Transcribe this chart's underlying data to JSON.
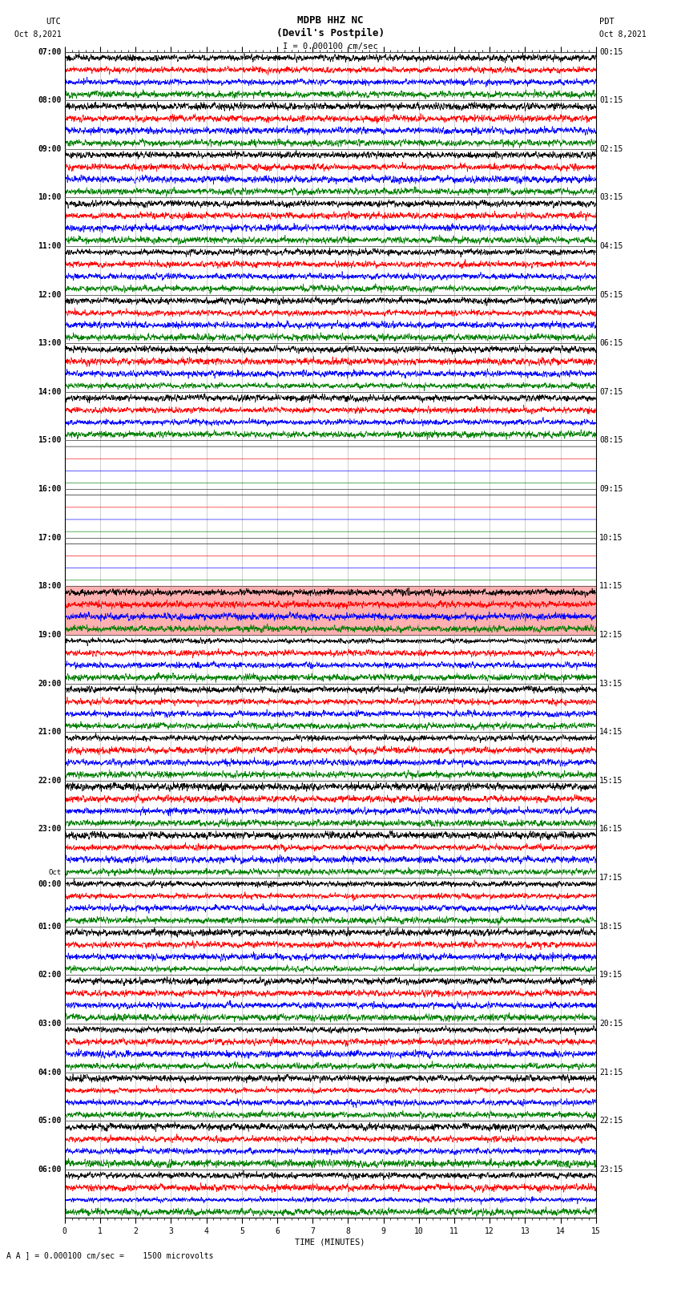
{
  "title_line1": "MDPB HHZ NC",
  "title_line2": "(Devil's Postpile)",
  "scale_label": "I = 0.000100 cm/sec",
  "bottom_text": "A ] = 0.000100 cm/sec =    1500 microvolts",
  "xlabel": "TIME (MINUTES)",
  "left_label": "UTC",
  "left_date": "Oct 8,2021",
  "right_label": "PDT",
  "right_date": "Oct 8,2021",
  "bg_color": "#ffffff",
  "trace_colors": [
    "black",
    "red",
    "blue",
    "green"
  ],
  "xmin": 0,
  "xmax": 15,
  "fig_width": 8.5,
  "fig_height": 16.13,
  "row_labels_left": [
    "07:00",
    "08:00",
    "09:00",
    "10:00",
    "11:00",
    "12:00",
    "13:00",
    "14:00",
    "15:00",
    "16:00",
    "17:00",
    "18:00",
    "19:00",
    "20:00",
    "21:00",
    "22:00",
    "23:00",
    "Oct\n00:00",
    "01:00",
    "02:00",
    "03:00",
    "04:00",
    "05:00",
    "06:00"
  ],
  "row_labels_right": [
    "00:15",
    "01:15",
    "02:15",
    "03:15",
    "04:15",
    "05:15",
    "06:15",
    "07:15",
    "08:15",
    "09:15",
    "10:15",
    "11:15",
    "12:15",
    "13:15",
    "14:15",
    "15:15",
    "16:15",
    "17:15",
    "18:15",
    "19:15",
    "20:15",
    "21:15",
    "22:15",
    "23:15"
  ],
  "num_rows": 24,
  "traces_per_row": 4,
  "blank_rows": [
    8,
    9,
    10
  ],
  "highlight_row": 11,
  "highlight_color": "#ffb0b0",
  "separator_color": "#555555",
  "grid_color": "#aaaaaa",
  "tick_color": "#000000",
  "oct9_row": 17
}
